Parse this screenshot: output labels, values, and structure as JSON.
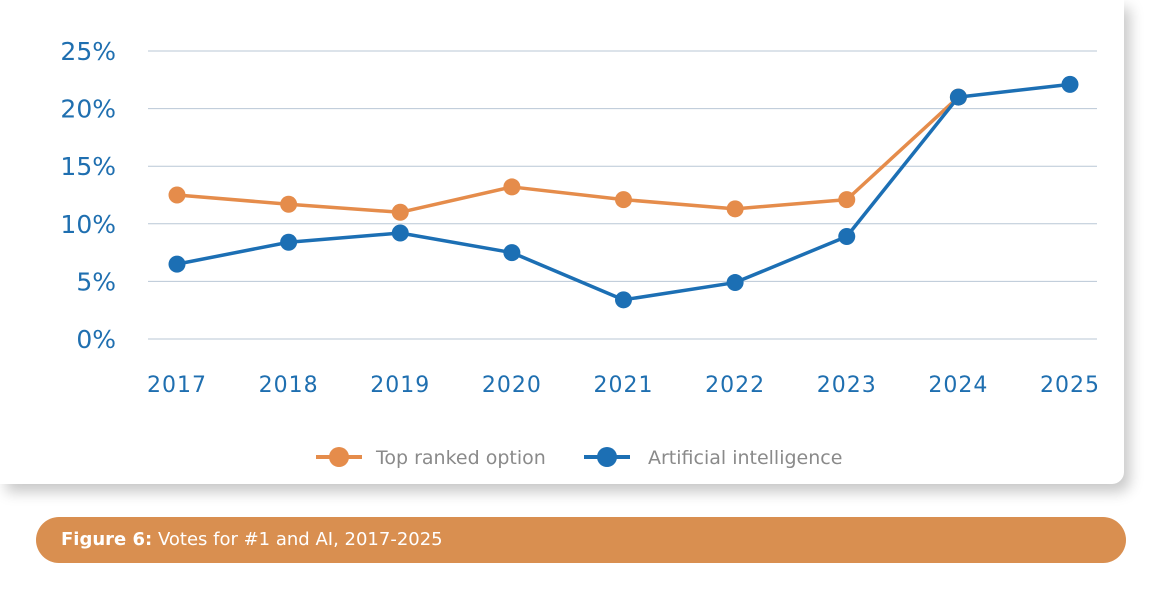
{
  "chart_data": {
    "type": "line",
    "x": [
      "2017",
      "2018",
      "2019",
      "2020",
      "2021",
      "2022",
      "2023",
      "2024",
      "2025"
    ],
    "series": [
      {
        "name": "Top ranked option",
        "color": "#e58c4b",
        "values": [
          12.5,
          11.7,
          11.0,
          13.2,
          12.1,
          11.3,
          12.1,
          21.0,
          null
        ]
      },
      {
        "name": "Artificial intelligence",
        "color": "#1c6fb4",
        "values": [
          6.5,
          8.4,
          9.2,
          7.5,
          3.4,
          4.9,
          8.9,
          21.0,
          22.1
        ]
      }
    ],
    "yticks": [
      "0%",
      "5%",
      "10%",
      "15%",
      "20%",
      "25%"
    ],
    "ylim": [
      0,
      25
    ],
    "grid": true,
    "legend_position": "bottom-center",
    "title": "",
    "xlabel": "",
    "ylabel": ""
  },
  "caption": {
    "label": "Figure 6:",
    "text": " Votes for #1 and AI, 2017-2025"
  },
  "colors": {
    "axis_text": "#1f6fb0",
    "gridline": "#b9c7d6",
    "caption_bg": "#d98f50"
  }
}
